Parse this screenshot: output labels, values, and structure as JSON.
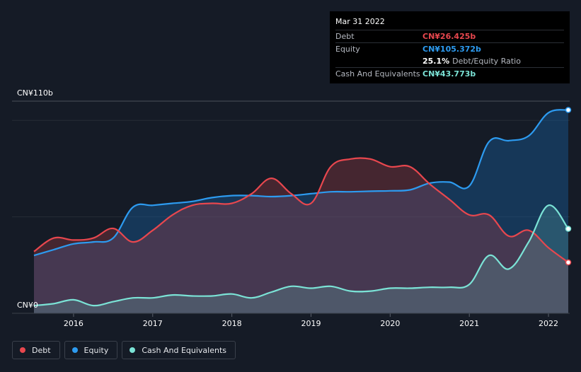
{
  "tooltip": {
    "date": "Mar 31 2022",
    "rows": [
      {
        "label": "Debt",
        "value": "CN¥26.425b",
        "extra": "",
        "color": "#e8474e"
      },
      {
        "label": "Equity",
        "value": "CN¥105.372b",
        "extra": "",
        "color": "#2d9bf0"
      },
      {
        "label": "",
        "value": "25.1%",
        "extra": "Debt/Equity Ratio",
        "color": "#ffffff"
      },
      {
        "label": "Cash And Equivalents",
        "value": "CN¥43.773b",
        "extra": "",
        "color": "#7be3d6"
      }
    ]
  },
  "legend": [
    {
      "label": "Debt",
      "color": "#e8474e"
    },
    {
      "label": "Equity",
      "color": "#2d9bf0"
    },
    {
      "label": "Cash And Equivalents",
      "color": "#7be3d6"
    }
  ],
  "chart_data": {
    "type": "area",
    "y_top_label": "CN¥110b",
    "y_bottom_label": "CN¥0",
    "ylim": [
      0,
      110
    ],
    "xlim": [
      2015.5,
      2022.25
    ],
    "x_ticks": [
      2016,
      2017,
      2018,
      2019,
      2020,
      2021,
      2022
    ],
    "x_tick_labels": [
      "2016",
      "2017",
      "2018",
      "2019",
      "2020",
      "2021",
      "2022"
    ],
    "grid_y": [
      0,
      50,
      100,
      110
    ],
    "series": [
      {
        "name": "Debt",
        "color": "#e8474e",
        "x": [
          2015.5,
          2015.75,
          2016.0,
          2016.25,
          2016.5,
          2016.75,
          2017.0,
          2017.25,
          2017.5,
          2017.75,
          2018.0,
          2018.25,
          2018.5,
          2018.75,
          2019.0,
          2019.25,
          2019.5,
          2019.75,
          2020.0,
          2020.25,
          2020.5,
          2020.75,
          2021.0,
          2021.25,
          2021.5,
          2021.75,
          2022.0,
          2022.25
        ],
        "values": [
          32,
          39,
          38,
          39,
          44,
          37,
          43,
          51,
          56,
          57,
          57,
          62,
          70,
          62,
          57,
          76,
          80,
          80,
          76,
          76,
          67,
          59,
          51,
          51,
          40,
          43,
          34,
          26.4
        ]
      },
      {
        "name": "Equity",
        "color": "#2d9bf0",
        "x": [
          2015.5,
          2015.75,
          2016.0,
          2016.25,
          2016.5,
          2016.75,
          2017.0,
          2017.25,
          2017.5,
          2017.75,
          2018.0,
          2018.25,
          2018.5,
          2018.75,
          2019.0,
          2019.25,
          2019.5,
          2019.75,
          2020.0,
          2020.25,
          2020.5,
          2020.75,
          2021.0,
          2021.25,
          2021.5,
          2021.75,
          2022.0,
          2022.25
        ],
        "values": [
          30,
          33,
          36,
          37,
          39,
          55,
          56,
          57,
          58,
          60,
          61,
          61,
          60.5,
          61,
          62,
          63,
          63,
          63.3,
          63.5,
          64,
          67.5,
          68,
          66,
          89,
          89.5,
          92,
          104,
          105.4
        ]
      },
      {
        "name": "Cash And Equivalents",
        "color": "#7be3d6",
        "x": [
          2015.5,
          2015.75,
          2016.0,
          2016.25,
          2016.5,
          2016.75,
          2017.0,
          2017.25,
          2017.5,
          2017.75,
          2018.0,
          2018.25,
          2018.5,
          2018.75,
          2019.0,
          2019.25,
          2019.5,
          2019.75,
          2020.0,
          2020.25,
          2020.5,
          2020.75,
          2021.0,
          2021.25,
          2021.5,
          2021.75,
          2022.0,
          2022.25
        ],
        "values": [
          4,
          5,
          7,
          4,
          6,
          8,
          8,
          9.5,
          9,
          9,
          10,
          8,
          11,
          14,
          13,
          14,
          11.5,
          11.5,
          13,
          13,
          13.5,
          13.5,
          15,
          30,
          23,
          37,
          56,
          43.8
        ]
      }
    ]
  }
}
